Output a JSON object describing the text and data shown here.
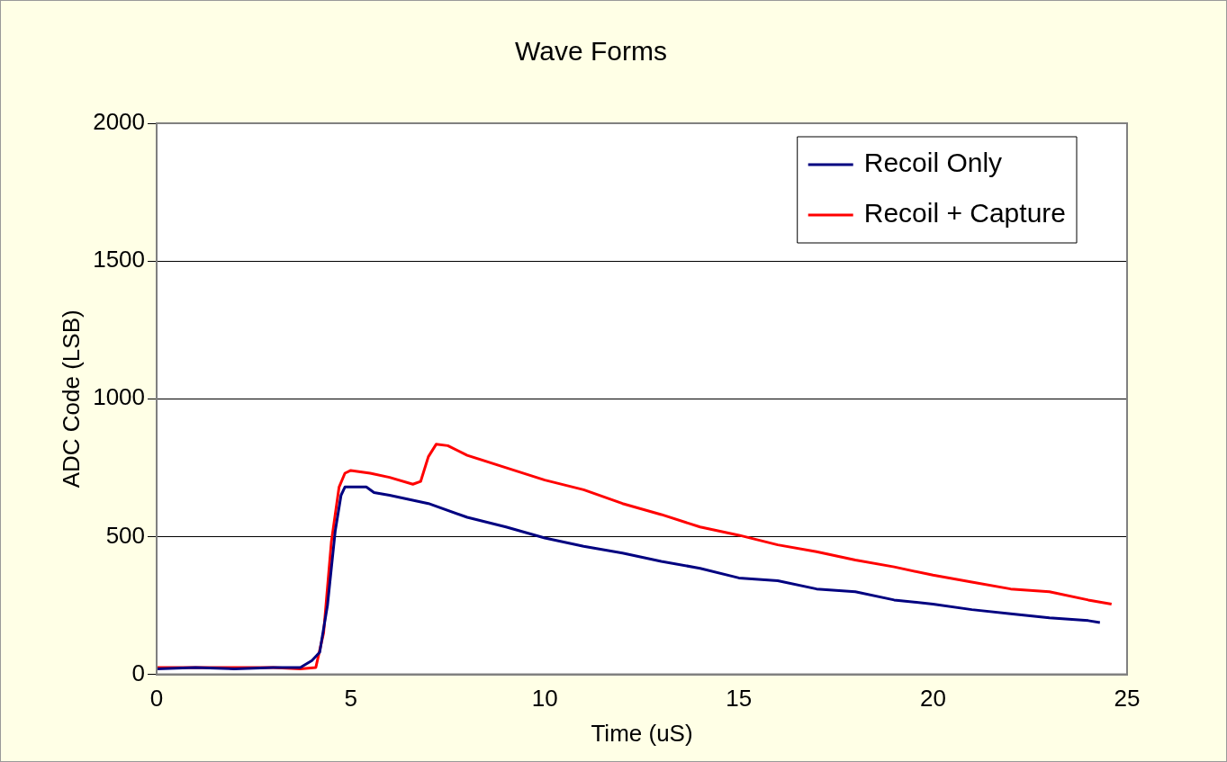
{
  "chart_data": {
    "type": "line",
    "title": "Wave Forms",
    "xlabel": "Time (uS)",
    "ylabel": "ADC Code (LSB)",
    "xlim": [
      0,
      25
    ],
    "xticks": [
      0,
      5,
      10,
      15,
      20,
      25
    ],
    "ylim": [
      0,
      2000
    ],
    "yticks": [
      0,
      500,
      1000,
      1500,
      2000
    ],
    "grid": "y",
    "legend": "top right",
    "marker": "none",
    "line_style": "solid",
    "series": [
      {
        "name": "Recoil Only",
        "color": "#000080",
        "x": [
          0,
          1,
          2,
          3,
          3.7,
          4.0,
          4.2,
          4.4,
          4.6,
          4.75,
          4.85,
          5.0,
          5.4,
          5.6,
          6,
          7,
          8,
          9,
          10,
          11,
          12,
          13,
          14,
          15,
          16,
          17,
          18,
          19,
          20,
          21,
          22,
          23,
          24,
          24.3
        ],
        "values": [
          20,
          25,
          20,
          25,
          25,
          50,
          80,
          250,
          520,
          650,
          680,
          680,
          680,
          660,
          650,
          620,
          570,
          535,
          495,
          465,
          440,
          410,
          385,
          350,
          340,
          310,
          300,
          270,
          255,
          235,
          220,
          205,
          195,
          188
        ]
      },
      {
        "name": "Recoil + Capture",
        "color": "#ff0000",
        "x": [
          0,
          1,
          2,
          3,
          3.7,
          4.1,
          4.3,
          4.5,
          4.7,
          4.85,
          5.0,
          5.5,
          6,
          6.6,
          6.8,
          7.0,
          7.2,
          7.5,
          8,
          9,
          10,
          11,
          12,
          13,
          14,
          15,
          16,
          17,
          18,
          19,
          20,
          21,
          22,
          23,
          24,
          24.6
        ],
        "values": [
          25,
          25,
          25,
          25,
          20,
          25,
          150,
          480,
          680,
          730,
          740,
          730,
          715,
          690,
          700,
          790,
          835,
          830,
          795,
          750,
          705,
          670,
          620,
          580,
          535,
          505,
          470,
          445,
          415,
          390,
          360,
          335,
          310,
          300,
          270,
          255
        ]
      }
    ]
  }
}
